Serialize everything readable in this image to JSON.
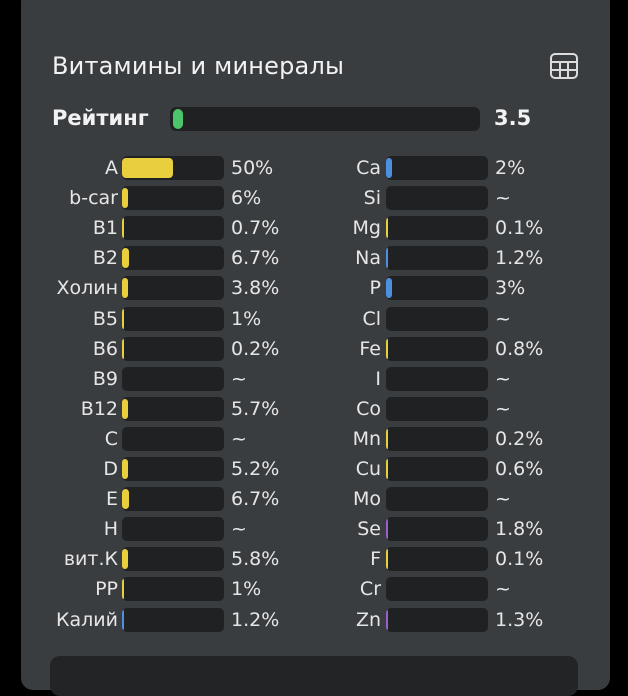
{
  "title": "Витамины и минералы",
  "icons": {
    "table_view": "table-grid-icon"
  },
  "colors": {
    "vitamin": "#e9cf3d",
    "mineral_blue": "#4e8fe0",
    "mineral_purple": "#9b5fd0",
    "rating": "#4cc46a",
    "track": "#1f2123"
  },
  "rating": {
    "label": "Рейтинг",
    "value": "3.5",
    "fraction": 0.02
  },
  "vitamins": [
    {
      "label": "A",
      "value": "50%",
      "fraction": 0.5
    },
    {
      "label": "b-car",
      "value": "6%",
      "fraction": 0.06
    },
    {
      "label": "B1",
      "value": "0.7%",
      "fraction": 0.007
    },
    {
      "label": "B2",
      "value": "6.7%",
      "fraction": 0.067
    },
    {
      "label": "Холин",
      "value": "3.8%",
      "fraction": 0.038
    },
    {
      "label": "B5",
      "value": "1%",
      "fraction": 0.01
    },
    {
      "label": "B6",
      "value": "0.2%",
      "fraction": 0.002
    },
    {
      "label": "B9",
      "value": "~",
      "fraction": 0
    },
    {
      "label": "B12",
      "value": "5.7%",
      "fraction": 0.057
    },
    {
      "label": "C",
      "value": "~",
      "fraction": 0
    },
    {
      "label": "D",
      "value": "5.2%",
      "fraction": 0.052
    },
    {
      "label": "E",
      "value": "6.7%",
      "fraction": 0.067
    },
    {
      "label": "H",
      "value": "~",
      "fraction": 0
    },
    {
      "label": "вит.К",
      "value": "5.8%",
      "fraction": 0.058
    },
    {
      "label": "PP",
      "value": "1%",
      "fraction": 0.01
    },
    {
      "label": "Калий",
      "value": "1.2%",
      "fraction": 0.012,
      "color": "blue"
    }
  ],
  "minerals": [
    {
      "label": "Ca",
      "value": "2%",
      "fraction": 0.02,
      "color": "blue"
    },
    {
      "label": "Si",
      "value": "~",
      "fraction": 0
    },
    {
      "label": "Mg",
      "value": "0.1%",
      "fraction": 0.001
    },
    {
      "label": "Na",
      "value": "1.2%",
      "fraction": 0.012,
      "color": "blue"
    },
    {
      "label": "P",
      "value": "3%",
      "fraction": 0.03,
      "color": "blue"
    },
    {
      "label": "Cl",
      "value": "~",
      "fraction": 0
    },
    {
      "label": "Fe",
      "value": "0.8%",
      "fraction": 0.008
    },
    {
      "label": "I",
      "value": "~",
      "fraction": 0
    },
    {
      "label": "Co",
      "value": "~",
      "fraction": 0
    },
    {
      "label": "Mn",
      "value": "0.2%",
      "fraction": 0.002
    },
    {
      "label": "Cu",
      "value": "0.6%",
      "fraction": 0.006
    },
    {
      "label": "Mo",
      "value": "~",
      "fraction": 0
    },
    {
      "label": "Se",
      "value": "1.8%",
      "fraction": 0.018,
      "color": "purple"
    },
    {
      "label": "F",
      "value": "0.1%",
      "fraction": 0.001
    },
    {
      "label": "Cr",
      "value": "~",
      "fraction": 0
    },
    {
      "label": "Zn",
      "value": "1.3%",
      "fraction": 0.013,
      "color": "purple"
    }
  ]
}
